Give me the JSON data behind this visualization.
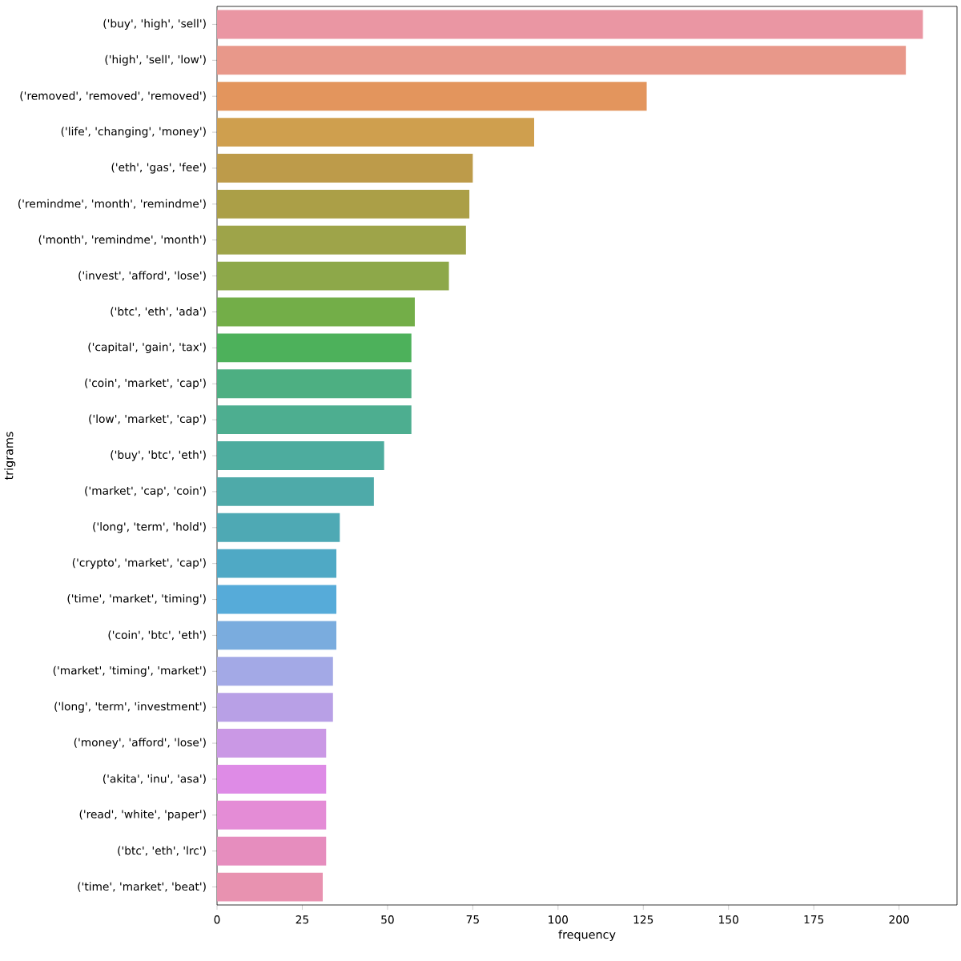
{
  "chart_data": {
    "type": "bar",
    "orientation": "horizontal",
    "xlabel": "frequency",
    "ylabel": "trigrams",
    "categories": [
      "('buy', 'high', 'sell')",
      "('high', 'sell', 'low')",
      "('removed', 'removed', 'removed')",
      "('life', 'changing', 'money')",
      "('eth', 'gas', 'fee')",
      "('remindme', 'month', 'remindme')",
      "('month', 'remindme', 'month')",
      "('invest', 'afford', 'lose')",
      "('btc', 'eth', 'ada')",
      "('capital', 'gain', 'tax')",
      "('coin', 'market', 'cap')",
      "('low', 'market', 'cap')",
      "('buy', 'btc', 'eth')",
      "('market', 'cap', 'coin')",
      "('long', 'term', 'hold')",
      "('crypto', 'market', 'cap')",
      "('time', 'market', 'timing')",
      "('coin', 'btc', 'eth')",
      "('market', 'timing', 'market')",
      "('long', 'term', 'investment')",
      "('money', 'afford', 'lose')",
      "('akita', 'inu', 'asa')",
      "('read', 'white', 'paper')",
      "('btc', 'eth', 'lrc')",
      "('time', 'market', 'beat')"
    ],
    "values": [
      207,
      202,
      126,
      93,
      75,
      74,
      73,
      68,
      58,
      57,
      57,
      57,
      49,
      46,
      36,
      35,
      35,
      35,
      34,
      34,
      32,
      32,
      32,
      32,
      31
    ],
    "colors": [
      "#ea96a3",
      "#e8988a",
      "#e3955d",
      "#cf9f4e",
      "#bd9b4a",
      "#ab9f47",
      "#9ea449",
      "#8da849",
      "#73ae48",
      "#4db15b",
      "#4daf82",
      "#4dae90",
      "#4dac9e",
      "#4eaaa9",
      "#4ea9b4",
      "#4fa9c5",
      "#56abd9",
      "#7aacde",
      "#a3a9e6",
      "#b8a0e6",
      "#ca98e5",
      "#de8be6",
      "#e48cd6",
      "#e68dbe",
      "#e892b0"
    ],
    "xlim": [
      0,
      217
    ],
    "xticks": [
      0,
      25,
      50,
      75,
      100,
      125,
      150,
      175,
      200
    ],
    "grid": false
  }
}
